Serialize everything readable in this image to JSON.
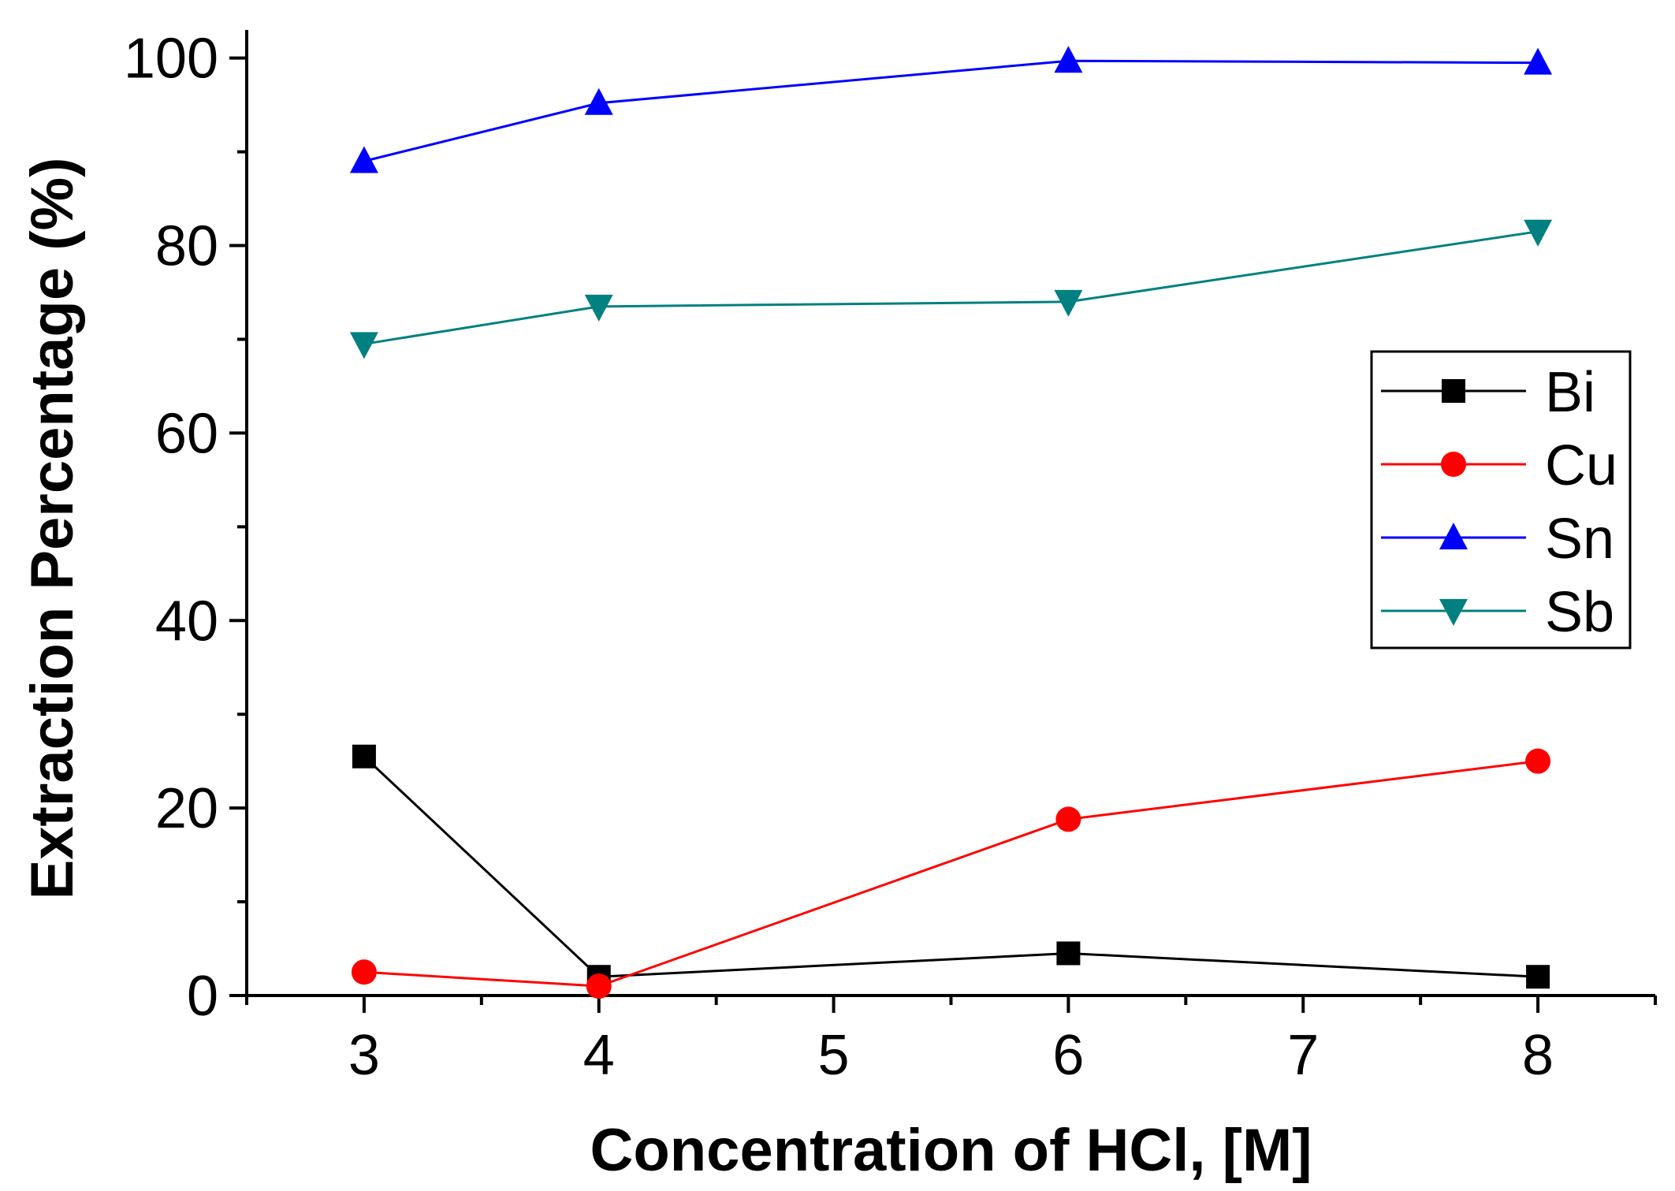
{
  "chart_data": {
    "type": "line",
    "title": "",
    "xlabel": "Concentration of HCl, [M]",
    "ylabel": "Extraction Percentage (%)",
    "xlim": [
      2.5,
      8.5
    ],
    "ylim": [
      0,
      103
    ],
    "x_ticks": [
      3,
      4,
      5,
      6,
      7,
      8
    ],
    "x_tick_labels": [
      "3",
      "4",
      "5",
      "6",
      "7",
      "8"
    ],
    "y_ticks": [
      0,
      20,
      40,
      60,
      80,
      100
    ],
    "y_tick_labels": [
      "0",
      "20",
      "40",
      "60",
      "80",
      "100"
    ],
    "grid": false,
    "legend_position": "right",
    "x": [
      3,
      4,
      6,
      8
    ],
    "series": [
      {
        "name": "Bi",
        "values": [
          25.5,
          2.0,
          4.5,
          2.0
        ],
        "color": "#000000",
        "marker": "square"
      },
      {
        "name": "Cu",
        "values": [
          2.5,
          1.0,
          18.8,
          25.0
        ],
        "color": "#ff0000",
        "marker": "circle"
      },
      {
        "name": "Sn",
        "values": [
          89.0,
          95.2,
          99.7,
          99.5
        ],
        "color": "#0000ff",
        "marker": "triangle-up"
      },
      {
        "name": "Sb",
        "values": [
          69.5,
          73.5,
          74.0,
          81.5
        ],
        "color": "#008080",
        "marker": "triangle-down"
      }
    ]
  }
}
